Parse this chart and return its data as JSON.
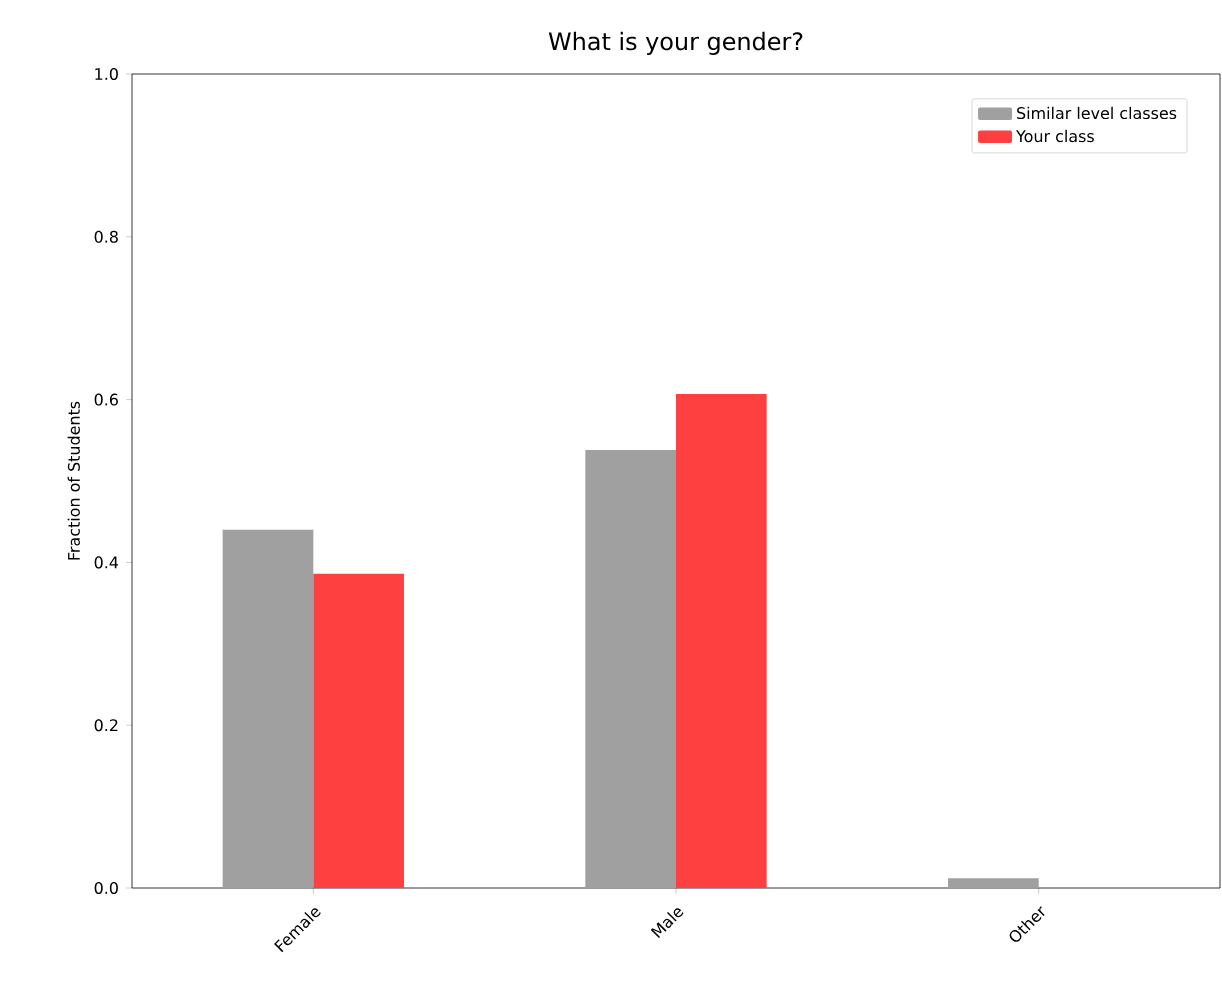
{
  "chart_data": {
    "type": "bar",
    "title": "What is your gender?",
    "ylabel": "Fraction of Students",
    "categories": [
      "Female",
      "Male",
      "Other"
    ],
    "series": [
      {
        "name": "Similar level classes",
        "color": "#a0a0a0",
        "values": [
          0.44,
          0.538,
          0.012
        ]
      },
      {
        "name": "Your class",
        "color": "#ff4040",
        "values": [
          0.386,
          0.607,
          0
        ]
      }
    ],
    "ylim": [
      0,
      1
    ],
    "yticks": [
      {
        "value": 0,
        "label": "0.0"
      },
      {
        "value": 0.2,
        "label": "0.2"
      },
      {
        "value": 0.4,
        "label": "0.4"
      },
      {
        "value": 0.6,
        "label": "0.6"
      },
      {
        "value": 0.8,
        "label": "0.8"
      },
      {
        "value": 1,
        "label": "1.0"
      }
    ],
    "legend": "top right"
  }
}
